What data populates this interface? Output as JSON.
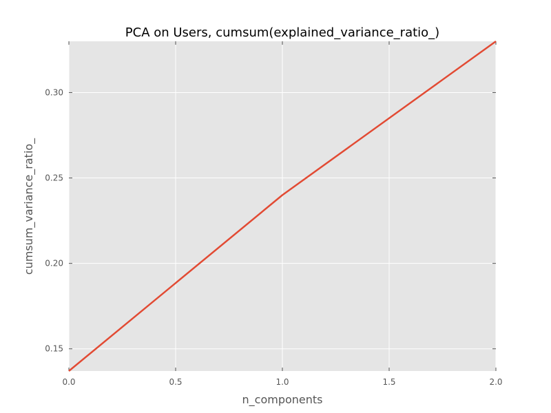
{
  "chart_data": {
    "type": "line",
    "title": "PCA on Users, cumsum(explained_variance_ratio_)",
    "xlabel": "n_components",
    "ylabel": "cumsum_variance_ratio_",
    "xlim": [
      0.0,
      2.0
    ],
    "ylim": [
      0.137,
      0.33
    ],
    "xticks": [
      0.0,
      0.5,
      1.0,
      1.5,
      2.0
    ],
    "xtick_labels": [
      "0.0",
      "0.5",
      "1.0",
      "1.5",
      "2.0"
    ],
    "yticks": [
      0.15,
      0.2,
      0.25,
      0.3
    ],
    "ytick_labels": [
      "0.15",
      "0.20",
      "0.25",
      "0.30"
    ],
    "grid": true,
    "series": [
      {
        "x": [
          0,
          1,
          2
        ],
        "values": [
          0.137,
          0.24,
          0.33
        ],
        "color": "#E24A33"
      }
    ],
    "colors": {
      "background": "#E5E5E5",
      "grid": "#FFFFFF",
      "tick": "#555555"
    }
  }
}
